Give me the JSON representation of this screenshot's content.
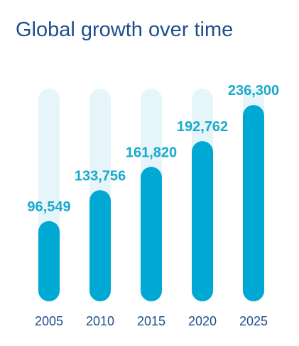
{
  "title": "Global growth over time",
  "colors": {
    "title": "#1f4e8c",
    "bar": "#00a8d4",
    "track": "#e6f5fa",
    "value_label": "#19a9cc",
    "tick_label": "#1f4e8c"
  },
  "chart_data": {
    "type": "bar",
    "title": "Global growth over time",
    "categories": [
      "2005",
      "2010",
      "2015",
      "2020",
      "2025"
    ],
    "values": [
      96549,
      133756,
      161820,
      192762,
      236300
    ],
    "value_labels": [
      "96,549",
      "133,756",
      "161,820",
      "192,762",
      "236,300"
    ],
    "xlabel": "",
    "ylabel": "",
    "ylim": [
      0,
      256000
    ],
    "grid": false,
    "legend": "none",
    "bar_style": "rounded-pill-on-track"
  }
}
